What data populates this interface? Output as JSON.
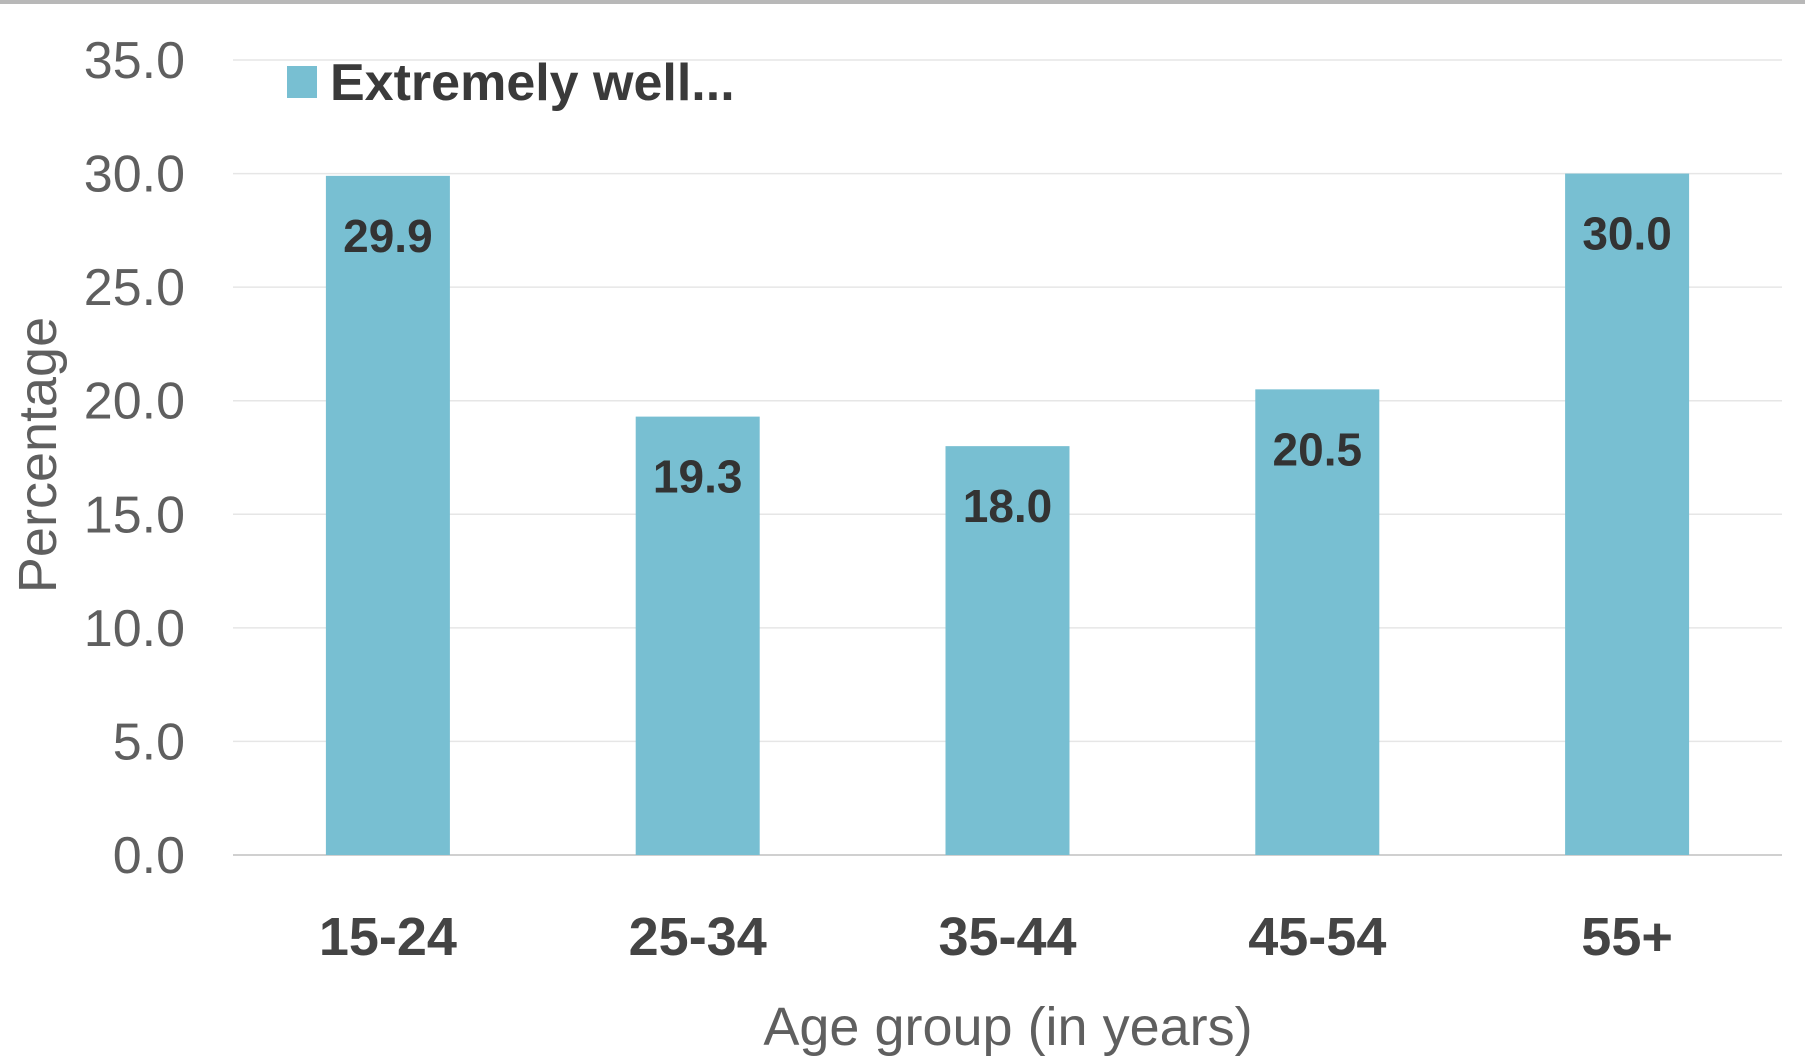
{
  "chart_data": {
    "type": "bar",
    "categories": [
      "15-24",
      "25-34",
      "35-44",
      "45-54",
      "55+"
    ],
    "series": [
      {
        "name": "Extremely well...",
        "values": [
          29.9,
          19.3,
          18.0,
          20.5,
          30.0
        ],
        "data_labels": [
          "29.9",
          "19.3",
          "18.0",
          "20.5",
          "30.0"
        ],
        "color": "#78bfd2"
      }
    ],
    "xlabel": "Age group (in years)",
    "ylabel": "Percentage",
    "ylim": [
      0,
      35
    ],
    "yticks": [
      0,
      5,
      10,
      15,
      20,
      25,
      30,
      35
    ],
    "ytick_labels": [
      "0.0",
      "5.0",
      "10.0",
      "15.0",
      "20.0",
      "25.0",
      "30.0",
      "35.0"
    ],
    "grid": true,
    "legend": "top-left",
    "colors": {
      "gridline": "#e6e6e6",
      "baseline": "#d0d0d0"
    }
  }
}
